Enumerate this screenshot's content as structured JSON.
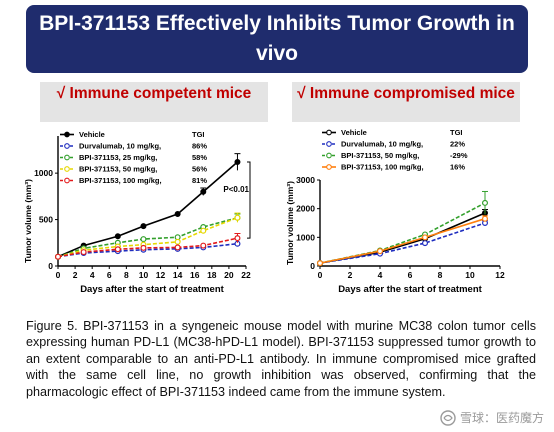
{
  "header": {
    "title": "BPI-371153  Effectively Inhibits Tumor Growth in vivo"
  },
  "panels": [
    {
      "banner": "√ Immune competent mice"
    },
    {
      "banner": "√ Immune compromised mice"
    }
  ],
  "chart_data": [
    {
      "type": "line",
      "title": "",
      "xlabel": "Days after the start of treatment",
      "ylabel": "Tumor volume (mm³)",
      "xlim": [
        0,
        22
      ],
      "ylim": [
        0,
        1400
      ],
      "xticks": [
        0,
        2,
        4,
        6,
        8,
        10,
        12,
        14,
        16,
        18,
        20,
        22
      ],
      "yticks": [
        0,
        500,
        1000
      ],
      "legend_header": "TGI",
      "annotation": "P<0.01",
      "x": [
        0,
        3,
        7,
        10,
        14,
        17,
        21
      ],
      "series": [
        {
          "name": "Vehicle",
          "tgi": "",
          "color": "#000000",
          "dashed": false,
          "values": [
            100,
            220,
            320,
            430,
            560,
            800,
            1120
          ],
          "error": [
            0,
            0,
            0,
            0,
            0,
            40,
            90
          ]
        },
        {
          "name": "Durvalumab, 10 mg/kg,",
          "tgi": "86%",
          "color": "#1f2dbf",
          "dashed": true,
          "values": [
            100,
            140,
            160,
            175,
            185,
            200,
            240
          ],
          "error": [
            0,
            0,
            0,
            0,
            0,
            0,
            0
          ]
        },
        {
          "name": "BPI-371153,  25 mg/kg,",
          "tgi": "58%",
          "color": "#33a02c",
          "dashed": true,
          "values": [
            100,
            190,
            250,
            290,
            310,
            420,
            520
          ],
          "error": [
            0,
            0,
            0,
            0,
            0,
            0,
            40
          ]
        },
        {
          "name": "BPI-371153,  50 mg/kg,",
          "tgi": "56%",
          "color": "#e6d800",
          "dashed": true,
          "values": [
            100,
            170,
            210,
            230,
            260,
            380,
            520
          ],
          "error": [
            0,
            0,
            0,
            0,
            0,
            0,
            50
          ]
        },
        {
          "name": "BPI-371153,  100 mg/kg,",
          "tgi": "81%",
          "color": "#e31a1c",
          "dashed": true,
          "values": [
            100,
            150,
            180,
            195,
            200,
            220,
            300
          ],
          "error": [
            0,
            0,
            0,
            0,
            0,
            0,
            50
          ]
        }
      ]
    },
    {
      "type": "line",
      "title": "",
      "xlabel": "Days after the start of treatment",
      "ylabel": "Tumor volume (mm³)",
      "xlim": [
        0,
        12
      ],
      "ylim": [
        0,
        3000
      ],
      "xticks": [
        0,
        2,
        4,
        6,
        8,
        10,
        12
      ],
      "yticks": [
        0,
        1000,
        2000,
        3000
      ],
      "legend_header": "TGI",
      "x": [
        0,
        4,
        7,
        11
      ],
      "series": [
        {
          "name": "Vehicle",
          "tgi": "",
          "color": "#000000",
          "dashed": false,
          "values": [
            100,
            480,
            950,
            1850
          ],
          "error": [
            0,
            0,
            0,
            120
          ]
        },
        {
          "name": "Durvalumab,  10 mg/kg,",
          "tgi": "22%",
          "color": "#1f2dbf",
          "dashed": true,
          "values": [
            100,
            430,
            800,
            1500
          ],
          "error": [
            0,
            0,
            0,
            80
          ]
        },
        {
          "name": "BPI-371153,  50 mg/kg,",
          "tgi": "-29%",
          "color": "#33a02c",
          "dashed": true,
          "values": [
            100,
            540,
            1100,
            2200
          ],
          "error": [
            0,
            0,
            0,
            400
          ]
        },
        {
          "name": "BPI-371153,  100 mg/kg,",
          "tgi": "16%",
          "color": "#ff7f0e",
          "dashed": false,
          "values": [
            100,
            520,
            1000,
            1650
          ],
          "error": [
            0,
            0,
            0,
            100
          ]
        }
      ]
    }
  ],
  "caption": "Figure 5. BPI-371153 in a syngeneic mouse model with murine MC38 colon tumor cells expressing human PD-L1 (MC38-hPD-L1 model). BPI-371153 suppressed tumor growth to an extent comparable to an anti-PD-L1 antibody. In immune compromised mice grafted with the same cell line, no growth inhibition was observed, confirming that the pharmacologic effect of BPI-371153 indeed came from the immune system.",
  "watermark": {
    "icon": "snowball-icon",
    "text": "雪球：医药魔方"
  }
}
